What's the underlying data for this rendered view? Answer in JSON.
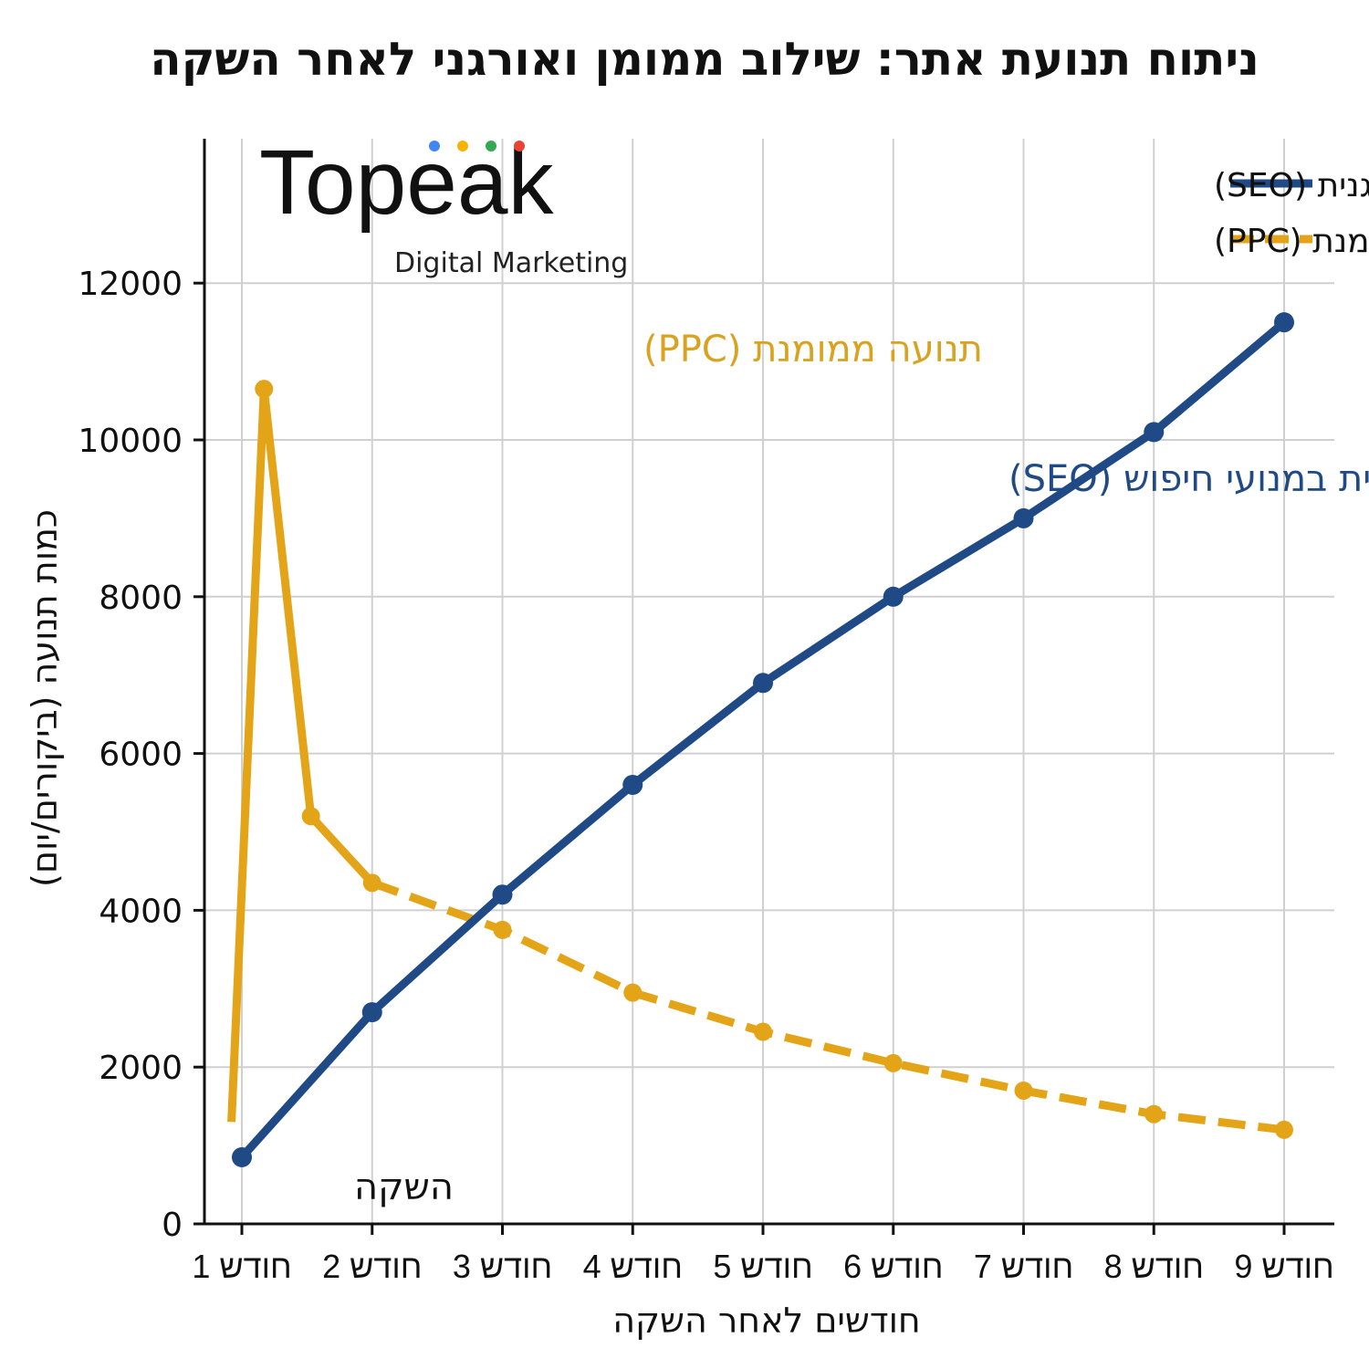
{
  "chart_data": {
    "type": "line",
    "title": "ניתוח תנועת אתר: שילוב ממומן ואורגני לאחר השקה",
    "xlabel": "חודשים לאחר השקה",
    "ylabel": "כמות תנועה (ביקורים/יום)",
    "x_tick_labels": [
      "חודש 1",
      "חודש 2",
      "חודש 3",
      "חודש 4",
      "חודש 5",
      "חודש 6",
      "חודש 7",
      "חודש 8",
      "חודש 9"
    ],
    "y_ticks": [
      0,
      2000,
      4000,
      6000,
      8000,
      10000,
      12000
    ],
    "ylim": [
      0,
      14000
    ],
    "xlim": [
      0.6,
      9.4
    ],
    "grid": true,
    "legend_placement": "top-right",
    "series": [
      {
        "name": "תנועה אורגנית (SEO)",
        "color": "#1f4a85",
        "style": "solid",
        "x": [
          1,
          2,
          3,
          4,
          5,
          6,
          7,
          8,
          9
        ],
        "y": [
          850,
          2700,
          4200,
          5600,
          6900,
          8000,
          9000,
          10100,
          11500
        ]
      },
      {
        "name": "תנועה ממומנת (PPC)",
        "color": "#e3a418",
        "style": "dashed",
        "x": [
          0.92,
          1.17,
          1.53,
          2,
          3,
          4,
          5,
          6,
          7,
          8,
          9
        ],
        "y": [
          1300,
          10650,
          5200,
          4350,
          3750,
          2950,
          2450,
          2050,
          1700,
          1400,
          1200
        ]
      }
    ],
    "annotations": {
      "ppc": "תנועה ממומנת (PPC)",
      "seo": "תנועה אורגנית במנועי חיפוש (SEO)",
      "launch": "השקה"
    },
    "logo": {
      "text": "Topeak",
      "subtitle": "Digital Marketing",
      "dot_colors": [
        "#4285f4",
        "#f4b400",
        "#34a853",
        "#ea4335"
      ]
    }
  }
}
